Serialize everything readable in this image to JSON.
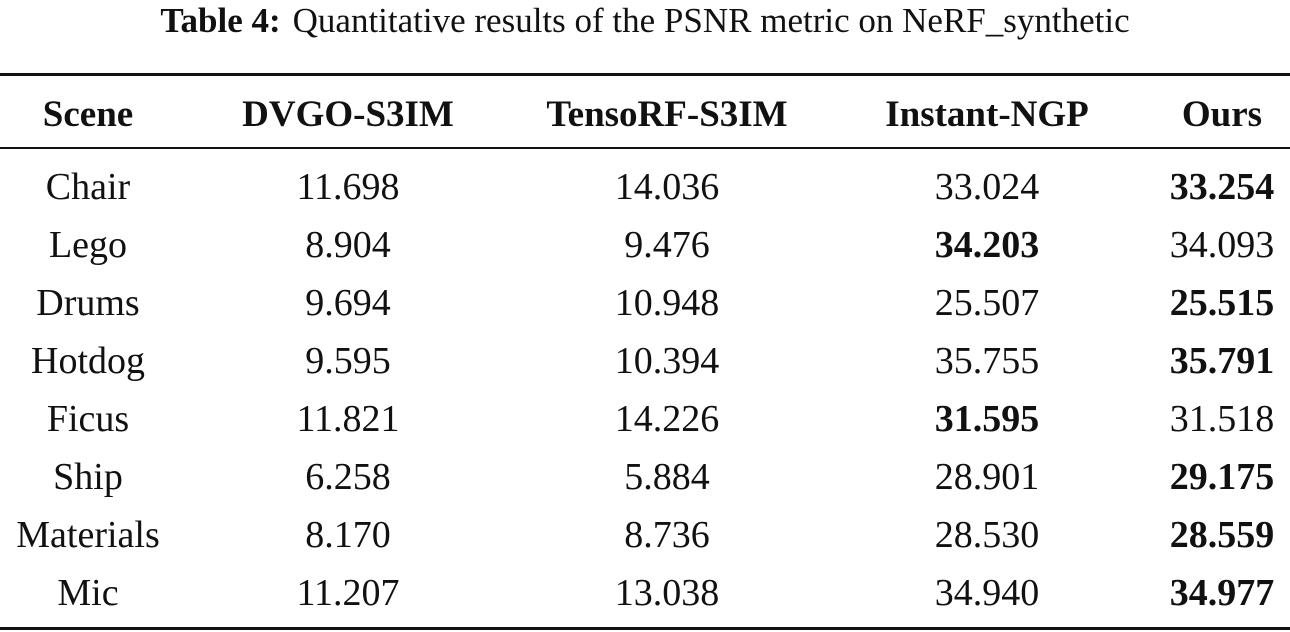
{
  "caption": {
    "label": "Table 4:",
    "text": "Quantitative results of the PSNR metric on NeRF_synthetic"
  },
  "table": {
    "header": [
      "Scene",
      "DVGO-S3IM",
      "TensoRF-S3IM",
      "Instant-NGP",
      "Ours"
    ],
    "rows": [
      [
        "Chair",
        "11.698",
        "14.036",
        "33.024",
        "33.254"
      ],
      [
        "Lego",
        "8.904",
        "9.476",
        "34.203",
        "34.093"
      ],
      [
        "Drums",
        "9.694",
        "10.948",
        "25.507",
        "25.515"
      ],
      [
        "Hotdog",
        "9.595",
        "10.394",
        "35.755",
        "35.791"
      ],
      [
        "Ficus",
        "11.821",
        "14.226",
        "31.595",
        "31.518"
      ],
      [
        "Ship",
        "6.258",
        "5.884",
        "28.901",
        "29.175"
      ],
      [
        "Materials",
        "8.170",
        "8.736",
        "28.530",
        "28.559"
      ],
      [
        "Mic",
        "11.207",
        "13.038",
        "34.940",
        "34.977"
      ]
    ],
    "bold": [
      4,
      3,
      4,
      4,
      3,
      4,
      4,
      4
    ]
  }
}
